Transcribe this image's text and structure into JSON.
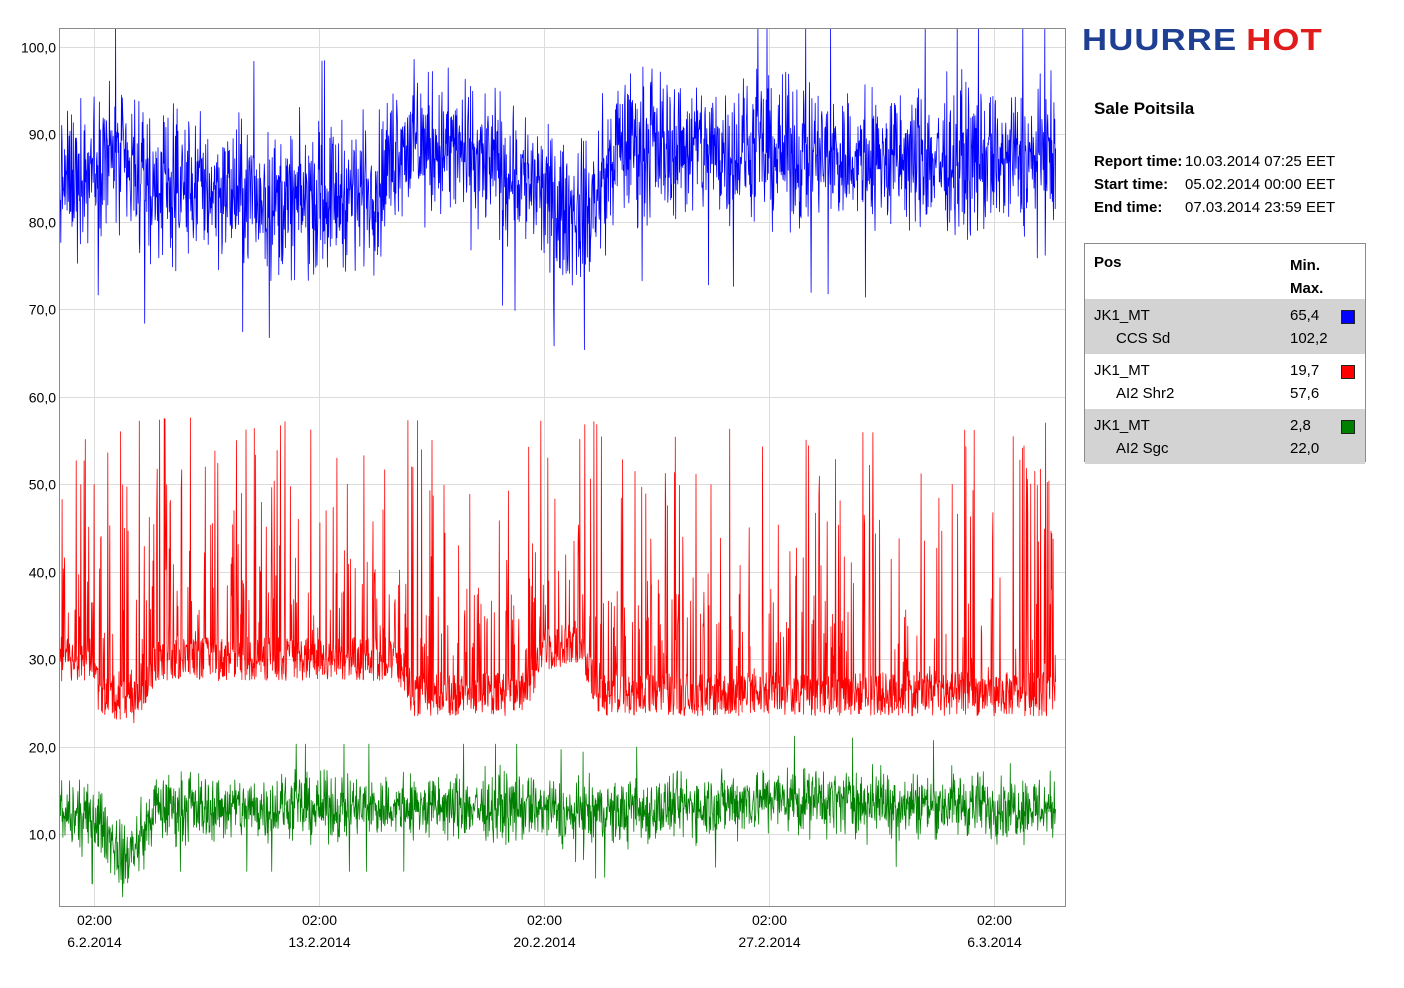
{
  "logo": {
    "word_a": "HUURRE",
    "word_b": "HOT",
    "color_a": "#1f3f92",
    "color_b": "#e01b1b"
  },
  "site_title": "Sale Poitsila",
  "report": {
    "report_time_label": "Report time:",
    "report_time": "10.03.2014 07:25 EET",
    "start_time_label": "Start time:",
    "start_time": "05.02.2014 00:00 EET",
    "end_time_label": "End time:",
    "end_time": "07.03.2014 23:59 EET"
  },
  "legend": {
    "header_pos": "Pos",
    "header_min": "Min.",
    "header_max": "Max.",
    "rows": [
      {
        "name1": "JK1_MT",
        "name2": "CCS Sd",
        "min": "65,4",
        "max": "102,2",
        "color": "#0000ff"
      },
      {
        "name1": "JK1_MT",
        "name2": "AI2 Shr2",
        "min": "19,7",
        "max": "57,6",
        "color": "#ff0000"
      },
      {
        "name1": "JK1_MT",
        "name2": "AI2 Sgc",
        "min": "2,8",
        "max": "22,0",
        "color": "#008000"
      }
    ]
  },
  "chart_data": {
    "type": "line",
    "ylim": [
      0,
      102.2
    ],
    "y_ticks": [
      "10,0",
      "20,0",
      "30,0",
      "40,0",
      "50,0",
      "60,0",
      "70,0",
      "80,0",
      "90,0",
      "100,0"
    ],
    "y_tick_values": [
      10,
      20,
      30,
      40,
      50,
      60,
      70,
      80,
      90,
      100
    ],
    "x_range_days": [
      "05.02.2014 00:00",
      "07.03.2014 23:59"
    ],
    "x_ticks": [
      {
        "time": "02:00",
        "date": "6.2.2014"
      },
      {
        "time": "02:00",
        "date": "13.2.2014"
      },
      {
        "time": "02:00",
        "date": "20.2.2014"
      },
      {
        "time": "02:00",
        "date": "27.2.2014"
      },
      {
        "time": "02:00",
        "date": "6.3.2014"
      }
    ],
    "grid": true,
    "series": [
      {
        "name": "JK1_MT CCS Sd",
        "color": "#0000ff",
        "min": 65.4,
        "max": 102.2,
        "baseline_by_date": [
          [
            "05.02.2014 00:00",
            84
          ],
          [
            "06.02.2014 12:00",
            88
          ],
          [
            "07.02.2014 12:00",
            84
          ],
          [
            "09.02.2014 12:00",
            84
          ],
          [
            "12.02.2014 00:00",
            82
          ],
          [
            "15.02.2014 00:00",
            84
          ],
          [
            "15.02.2014 12:00",
            89
          ],
          [
            "17.02.2014 12:00",
            88
          ],
          [
            "19.02.2014 12:00",
            85
          ],
          [
            "20.02.2014 12:00",
            81
          ],
          [
            "21.02.2014 12:00",
            81
          ],
          [
            "22.02.2014 12:00",
            89
          ],
          [
            "27.02.2014 00:00",
            88
          ],
          [
            "02.03.2014 00:00",
            87
          ],
          [
            "07.03.2014 23:59",
            87
          ]
        ],
        "spread": 6
      },
      {
        "name": "JK1_MT AI2 Shr2",
        "color": "#ff0000",
        "min": 19.7,
        "max": 57.6,
        "baseline_by_date": [
          [
            "05.02.2014 00:00",
            30
          ],
          [
            "06.02.2014 00:00",
            30
          ],
          [
            "06.02.2014 06:00",
            26
          ],
          [
            "07.02.2014 12:00",
            25
          ],
          [
            "08.02.2014 00:00",
            30
          ],
          [
            "15.02.2014 12:00",
            30
          ],
          [
            "16.02.2014 00:00",
            26
          ],
          [
            "19.02.2014 12:00",
            26
          ],
          [
            "20.02.2014 00:00",
            31
          ],
          [
            "21.02.2014 06:00",
            32
          ],
          [
            "21.02.2014 18:00",
            26
          ],
          [
            "07.03.2014 23:59",
            26
          ]
        ],
        "spread": 2.5
      },
      {
        "name": "JK1_MT AI2 Sgc",
        "color": "#008000",
        "min": 2.8,
        "max": 22.0,
        "baseline_by_date": [
          [
            "05.02.2014 00:00",
            12
          ],
          [
            "06.02.2014 06:00",
            11.5
          ],
          [
            "07.02.2014 00:00",
            7
          ],
          [
            "07.02.2014 12:00",
            9
          ],
          [
            "08.02.2014 00:00",
            13
          ],
          [
            "15.02.2014 00:00",
            13
          ],
          [
            "20.02.2014 00:00",
            13
          ],
          [
            "21.02.2014 00:00",
            12
          ],
          [
            "27.02.2014 00:00",
            14
          ],
          [
            "07.03.2014 23:59",
            13
          ]
        ],
        "spread": 2.8
      }
    ]
  }
}
